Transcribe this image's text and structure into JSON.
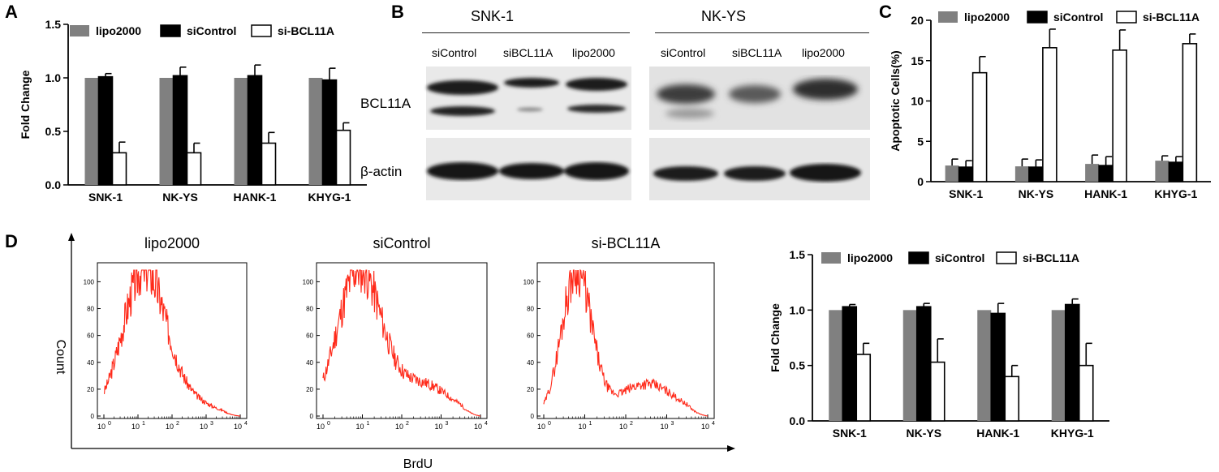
{
  "panels": {
    "a": "A",
    "b": "B",
    "c": "C",
    "d": "D"
  },
  "colors": {
    "lipo2000": "#808080",
    "siControl": "#000000",
    "siBCL11A": "#ffffff",
    "histogram": "#ff2a1a",
    "band": "#151515"
  },
  "blot": {
    "group_left": "SNK-1",
    "group_right": "NK-YS",
    "lanes_left": [
      "siControl",
      "siBCL11A",
      "lipo2000"
    ],
    "lanes_right": [
      "siControl",
      "siBCL11A",
      "lipo2000"
    ],
    "row_labels": [
      "BCL11A",
      "β-actin"
    ]
  },
  "flow": {
    "titles": [
      "lipo2000",
      "siControl",
      "si-BCL11A"
    ],
    "ylabel": "Count",
    "xlabel": "BrdU",
    "x_ticks": [
      "0",
      "1",
      "2",
      "3",
      "4"
    ],
    "y_ticks_1": [
      "0",
      "20",
      "40",
      "60",
      "80",
      "100"
    ],
    "y_ticks_2": [
      "0",
      "20",
      "40",
      "60",
      "80",
      "100"
    ],
    "y_ticks_3": [
      "0",
      "20",
      "40",
      "60",
      "80",
      "100"
    ]
  },
  "chart_data": [
    {
      "panel": "A",
      "type": "bar",
      "categories": [
        "SNK-1",
        "NK-YS",
        "HANK-1",
        "KHYG-1"
      ],
      "series": [
        {
          "name": "lipo2000",
          "values": [
            1.0,
            1.0,
            1.0,
            1.0
          ],
          "errors": [
            0.0,
            0.0,
            0.0,
            0.0
          ]
        },
        {
          "name": "siControl",
          "values": [
            1.01,
            1.02,
            1.02,
            0.98
          ],
          "errors": [
            0.03,
            0.08,
            0.1,
            0.11
          ]
        },
        {
          "name": "si-BCL11A",
          "values": [
            0.3,
            0.3,
            0.39,
            0.51
          ],
          "errors": [
            0.1,
            0.09,
            0.1,
            0.07
          ]
        }
      ],
      "xlabel": "",
      "ylabel": "Fold Change",
      "ylim": [
        0,
        1.5
      ],
      "y_ticks": [
        "0.0",
        "0.5",
        "1.0",
        "1.5"
      ],
      "legend": "top"
    },
    {
      "panel": "C",
      "type": "bar",
      "categories": [
        "SNK-1",
        "NK-YS",
        "HANK-1",
        "KHYG-1"
      ],
      "series": [
        {
          "name": "lipo2000",
          "values": [
            2.0,
            1.9,
            2.2,
            2.6
          ],
          "errors": [
            0.8,
            0.9,
            1.1,
            0.6
          ]
        },
        {
          "name": "siControl",
          "values": [
            1.8,
            1.8,
            2.0,
            2.4
          ],
          "errors": [
            0.8,
            0.9,
            1.1,
            0.7
          ]
        },
        {
          "name": "si-BCL11A",
          "values": [
            13.5,
            16.6,
            16.3,
            17.1
          ],
          "errors": [
            2.0,
            2.3,
            2.5,
            1.2
          ]
        }
      ],
      "xlabel": "",
      "ylabel": "Apoptotic Cells(%)",
      "ylim": [
        0,
        20
      ],
      "y_ticks": [
        "0",
        "5",
        "10",
        "15",
        "20"
      ],
      "legend": "top"
    },
    {
      "panel": "D",
      "type": "bar",
      "categories": [
        "SNK-1",
        "NK-YS",
        "HANK-1",
        "KHYG-1"
      ],
      "series": [
        {
          "name": "lipo2000",
          "values": [
            1.0,
            1.0,
            1.0,
            1.0
          ],
          "errors": [
            0.0,
            0.0,
            0.0,
            0.0
          ]
        },
        {
          "name": "siControl",
          "values": [
            1.03,
            1.03,
            0.97,
            1.05
          ],
          "errors": [
            0.02,
            0.03,
            0.09,
            0.05
          ]
        },
        {
          "name": "si-BCL11A",
          "values": [
            0.6,
            0.53,
            0.4,
            0.5
          ],
          "errors": [
            0.1,
            0.21,
            0.1,
            0.2
          ]
        }
      ],
      "xlabel": "",
      "ylabel": "Fold Change",
      "ylim": [
        0,
        1.5
      ],
      "y_ticks": [
        "0.0",
        "0.5",
        "1.0",
        "1.5"
      ],
      "legend": "top"
    }
  ]
}
